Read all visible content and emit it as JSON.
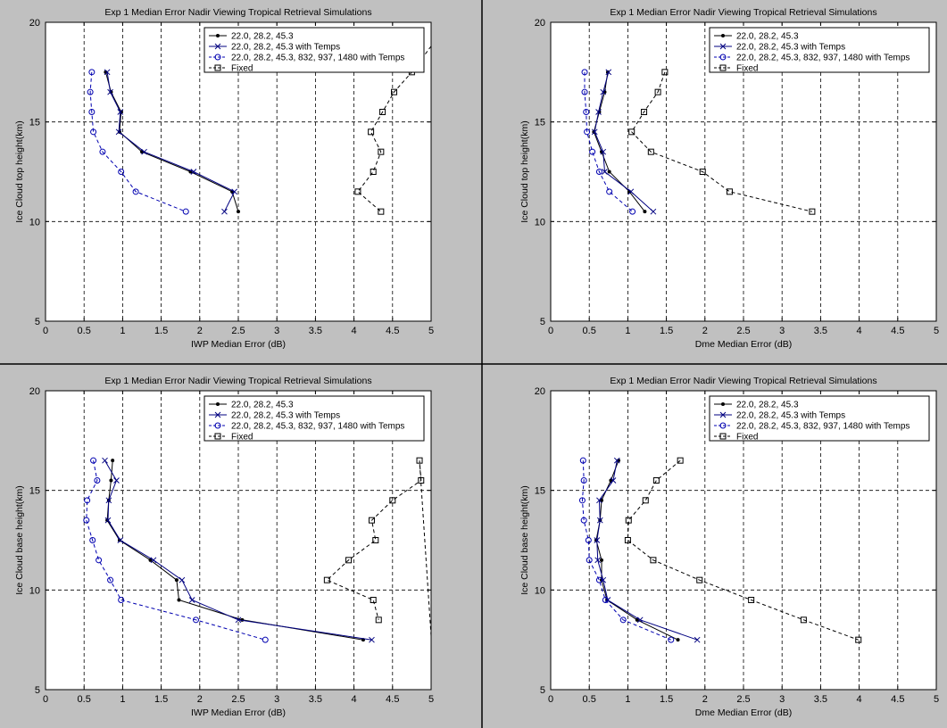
{
  "chart_data": [
    {
      "type": "line",
      "title": "Exp 1 Median Error Nadir Viewing Tropical Retrieval Simulations",
      "xlabel": "IWP Median Error (dB)",
      "ylabel": "Ice Cloud top height(km)",
      "xlim": [
        0,
        5
      ],
      "ylim": [
        5,
        20
      ],
      "xticks": [
        "0",
        "0.5",
        "1",
        "1.5",
        "2",
        "2.5",
        "3",
        "3.5",
        "4",
        "4.5",
        "5"
      ],
      "yticks": [
        "5",
        "10",
        "15",
        "20"
      ],
      "grid": true,
      "legend_position": "top-right",
      "series": [
        {
          "name": "22.0, 28.2, 45.3",
          "points": [
            [
              0.78,
              17.5
            ],
            [
              0.85,
              16.5
            ],
            [
              0.98,
              15.5
            ],
            [
              0.96,
              14.5
            ],
            [
              1.25,
              13.5
            ],
            [
              1.88,
              12.5
            ],
            [
              2.42,
              11.5
            ],
            [
              2.5,
              10.5
            ]
          ]
        },
        {
          "name": "22.0, 28.2, 45.3 with Temps",
          "points": [
            [
              0.8,
              17.5
            ],
            [
              0.84,
              16.5
            ],
            [
              0.97,
              15.5
            ],
            [
              0.95,
              14.5
            ],
            [
              1.28,
              13.5
            ],
            [
              1.92,
              12.5
            ],
            [
              2.45,
              11.5
            ],
            [
              2.32,
              10.5
            ]
          ]
        },
        {
          "name": "22.0, 28.2, 45.3, 832, 937, 1480 with Temps",
          "points": [
            [
              0.6,
              17.5
            ],
            [
              0.58,
              16.5
            ],
            [
              0.6,
              15.5
            ],
            [
              0.62,
              14.5
            ],
            [
              0.74,
              13.5
            ],
            [
              0.98,
              12.5
            ],
            [
              1.17,
              11.5
            ],
            [
              1.82,
              10.5
            ]
          ]
        },
        {
          "name": "Fixed",
          "points": [
            [
              4.75,
              17.5
            ],
            [
              4.52,
              16.5
            ],
            [
              4.37,
              15.5
            ],
            [
              4.22,
              14.5
            ],
            [
              4.35,
              13.5
            ],
            [
              4.25,
              12.5
            ],
            [
              4.05,
              11.5
            ],
            [
              4.35,
              10.5
            ]
          ],
          "extend": [
            5.0,
            18.8
          ]
        }
      ]
    },
    {
      "type": "line",
      "title": "Exp 1 Median Error Nadir Viewing Tropical Retrieval Simulations",
      "xlabel": "Dme Median Error (dB)",
      "ylabel": "Ice Cloud top height(km)",
      "xlim": [
        0,
        5
      ],
      "ylim": [
        5,
        20
      ],
      "xticks": [
        "0",
        "0.5",
        "1",
        "1.5",
        "2",
        "2.5",
        "3",
        "3.5",
        "4",
        "4.5",
        "5"
      ],
      "yticks": [
        "5",
        "10",
        "15",
        "20"
      ],
      "grid": true,
      "legend_position": "top-right",
      "series": [
        {
          "name": "22.0, 28.2, 45.3",
          "points": [
            [
              0.74,
              17.5
            ],
            [
              0.7,
              16.5
            ],
            [
              0.63,
              15.5
            ],
            [
              0.56,
              14.5
            ],
            [
              0.66,
              13.5
            ],
            [
              0.76,
              12.5
            ],
            [
              1.02,
              11.5
            ],
            [
              1.22,
              10.5
            ]
          ]
        },
        {
          "name": "22.0, 28.2, 45.3 with Temps",
          "points": [
            [
              0.75,
              17.5
            ],
            [
              0.68,
              16.5
            ],
            [
              0.62,
              15.5
            ],
            [
              0.57,
              14.5
            ],
            [
              0.68,
              13.5
            ],
            [
              0.7,
              12.5
            ],
            [
              1.04,
              11.5
            ],
            [
              1.33,
              10.5
            ]
          ]
        },
        {
          "name": "22.0, 28.2, 45.3, 832, 937, 1480 with Temps",
          "points": [
            [
              0.44,
              17.5
            ],
            [
              0.44,
              16.5
            ],
            [
              0.46,
              15.5
            ],
            [
              0.47,
              14.5
            ],
            [
              0.54,
              13.5
            ],
            [
              0.63,
              12.5
            ],
            [
              0.76,
              11.5
            ],
            [
              1.06,
              10.5
            ]
          ]
        },
        {
          "name": "Fixed",
          "points": [
            [
              1.48,
              17.5
            ],
            [
              1.39,
              16.5
            ],
            [
              1.21,
              15.5
            ],
            [
              1.05,
              14.5
            ],
            [
              1.3,
              13.5
            ],
            [
              1.97,
              12.5
            ],
            [
              2.32,
              11.5
            ],
            [
              3.39,
              10.5
            ]
          ]
        }
      ]
    },
    {
      "type": "line",
      "title": "Exp 1 Median Error Nadir Viewing Tropical Retrieval Simulations",
      "xlabel": "IWP Median Error (dB)",
      "ylabel": "Ice Cloud base height(km)",
      "xlim": [
        0,
        5
      ],
      "ylim": [
        5,
        20
      ],
      "xticks": [
        "0",
        "0.5",
        "1",
        "1.5",
        "2",
        "2.5",
        "3",
        "3.5",
        "4",
        "4.5",
        "5"
      ],
      "yticks": [
        "5",
        "10",
        "15",
        "20"
      ],
      "grid": true,
      "legend_position": "top-right",
      "series": [
        {
          "name": "22.0, 28.2, 45.3",
          "points": [
            [
              0.87,
              16.5
            ],
            [
              0.85,
              15.5
            ],
            [
              0.82,
              14.5
            ],
            [
              0.8,
              13.5
            ],
            [
              0.96,
              12.5
            ],
            [
              1.36,
              11.5
            ],
            [
              1.7,
              10.5
            ],
            [
              1.73,
              9.5
            ],
            [
              2.55,
              8.5
            ],
            [
              4.12,
              7.5
            ]
          ]
        },
        {
          "name": "22.0, 28.2, 45.3 with Temps",
          "points": [
            [
              0.77,
              16.5
            ],
            [
              0.92,
              15.5
            ],
            [
              0.82,
              14.5
            ],
            [
              0.81,
              13.5
            ],
            [
              0.97,
              12.5
            ],
            [
              1.4,
              11.5
            ],
            [
              1.77,
              10.5
            ],
            [
              1.9,
              9.5
            ],
            [
              2.5,
              8.5
            ],
            [
              4.23,
              7.5
            ]
          ]
        },
        {
          "name": "22.0, 28.2, 45.3, 832, 937, 1480 with Temps",
          "points": [
            [
              0.62,
              16.5
            ],
            [
              0.67,
              15.5
            ],
            [
              0.54,
              14.5
            ],
            [
              0.53,
              13.5
            ],
            [
              0.61,
              12.5
            ],
            [
              0.69,
              11.5
            ],
            [
              0.84,
              10.5
            ],
            [
              0.98,
              9.5
            ],
            [
              1.95,
              8.5
            ],
            [
              2.85,
              7.5
            ]
          ]
        },
        {
          "name": "Fixed",
          "points": [
            [
              4.85,
              16.5
            ],
            [
              4.87,
              15.5
            ],
            [
              4.5,
              14.5
            ],
            [
              4.23,
              13.5
            ],
            [
              4.28,
              12.5
            ],
            [
              3.93,
              11.5
            ],
            [
              3.65,
              10.5
            ],
            [
              4.25,
              9.5
            ],
            [
              4.32,
              8.5
            ]
          ],
          "extend": [
            5.0,
            7.7
          ]
        }
      ]
    },
    {
      "type": "line",
      "title": "Exp 1 Median Error Nadir Viewing Tropical Retrieval Simulations",
      "xlabel": "Dme Median Error (dB)",
      "ylabel": "Ice Cloud base height(km)",
      "xlim": [
        0,
        5
      ],
      "ylim": [
        5,
        20
      ],
      "xticks": [
        "0",
        "0.5",
        "1",
        "1.5",
        "2",
        "2.5",
        "3",
        "3.5",
        "4",
        "4.5",
        "5"
      ],
      "yticks": [
        "5",
        "10",
        "15",
        "20"
      ],
      "grid": true,
      "legend_position": "top-right",
      "series": [
        {
          "name": "22.0, 28.2, 45.3",
          "points": [
            [
              0.88,
              16.5
            ],
            [
              0.78,
              15.5
            ],
            [
              0.66,
              14.5
            ],
            [
              0.64,
              13.5
            ],
            [
              0.59,
              12.5
            ],
            [
              0.66,
              11.5
            ],
            [
              0.66,
              10.5
            ],
            [
              0.73,
              9.5
            ],
            [
              1.12,
              8.5
            ],
            [
              1.65,
              7.5
            ]
          ]
        },
        {
          "name": "22.0, 28.2, 45.3 with Temps",
          "points": [
            [
              0.86,
              16.5
            ],
            [
              0.81,
              15.5
            ],
            [
              0.63,
              14.5
            ],
            [
              0.64,
              13.5
            ],
            [
              0.6,
              12.5
            ],
            [
              0.61,
              11.5
            ],
            [
              0.68,
              10.5
            ],
            [
              0.74,
              9.5
            ],
            [
              1.16,
              8.5
            ],
            [
              1.9,
              7.5
            ]
          ]
        },
        {
          "name": "22.0, 28.2, 45.3, 832, 937, 1480 with Temps",
          "points": [
            [
              0.42,
              16.5
            ],
            [
              0.43,
              15.5
            ],
            [
              0.41,
              14.5
            ],
            [
              0.43,
              13.5
            ],
            [
              0.49,
              12.5
            ],
            [
              0.5,
              11.5
            ],
            [
              0.63,
              10.5
            ],
            [
              0.71,
              9.5
            ],
            [
              0.94,
              8.5
            ],
            [
              1.56,
              7.5
            ]
          ]
        },
        {
          "name": "Fixed",
          "points": [
            [
              1.68,
              16.5
            ],
            [
              1.37,
              15.5
            ],
            [
              1.23,
              14.5
            ],
            [
              1.01,
              13.5
            ],
            [
              1.0,
              12.5
            ],
            [
              1.33,
              11.5
            ],
            [
              1.93,
              10.5
            ],
            [
              2.6,
              9.5
            ],
            [
              3.28,
              8.5
            ],
            [
              3.99,
              7.5
            ]
          ]
        }
      ]
    }
  ]
}
